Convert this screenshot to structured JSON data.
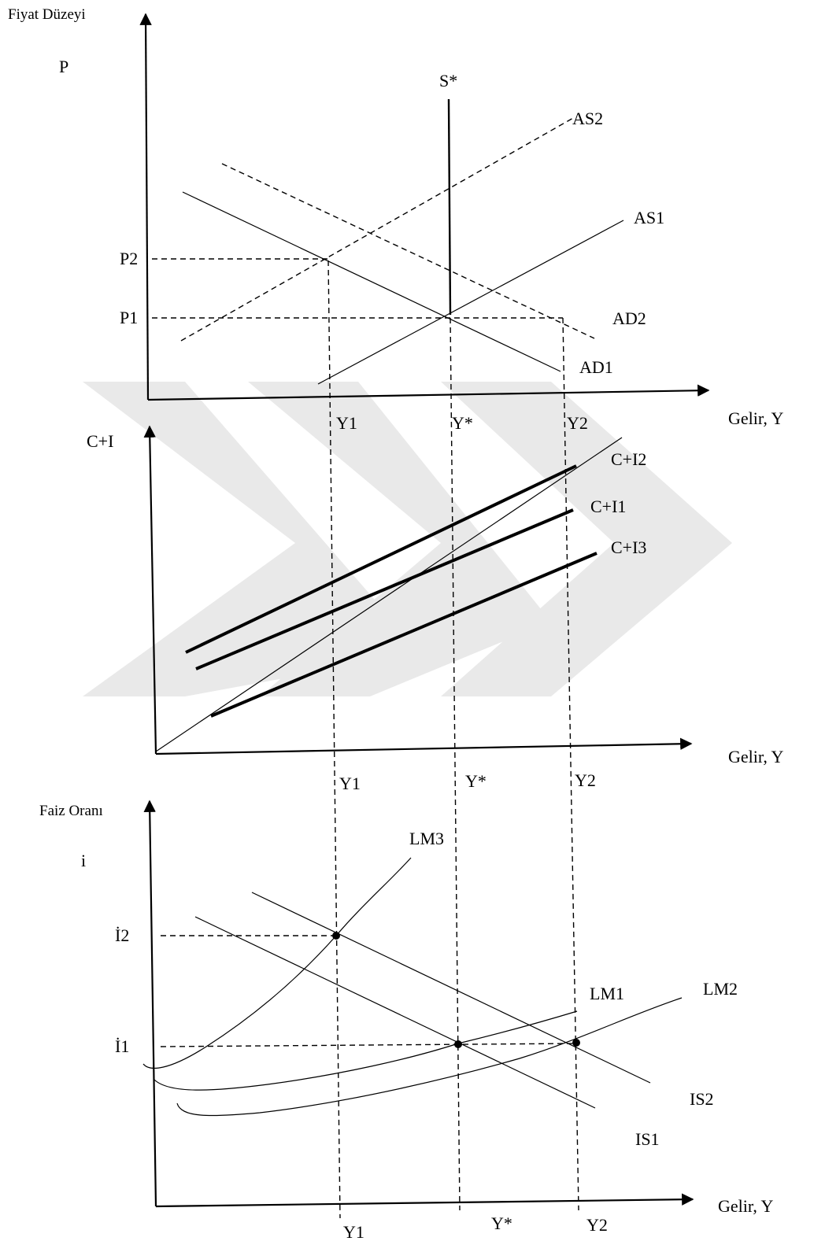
{
  "panel_top": {
    "y_axis_title": "Fiyat Düzeyi",
    "y_symbol": "P",
    "x_axis_label": "Gelir, Y",
    "curves": {
      "s_star": "S*",
      "as2": "AS2",
      "as1": "AS1",
      "ad2": "AD2",
      "ad1": "AD1"
    },
    "price_levels": {
      "p2": "P2",
      "p1": "P1"
    },
    "incomes": {
      "y1": "Y1",
      "y_star": "Y*",
      "y2": "Y2"
    }
  },
  "panel_middle": {
    "y_axis_title": "C+I",
    "x_axis_label": "Gelir, Y",
    "curves": {
      "ci2": "C+I2",
      "ci1": "C+I1",
      "ci3": "C+I3"
    },
    "incomes": {
      "y1": "Y1",
      "y_star": "Y*",
      "y2": "Y2"
    }
  },
  "panel_bottom": {
    "y_axis_title": "Faiz Oranı",
    "y_symbol": "i",
    "x_axis_label": "Gelir, Y",
    "curves": {
      "lm3": "LM3",
      "lm1": "LM1",
      "lm2": "LM2",
      "is2": "IS2",
      "is1": "IS1"
    },
    "rates": {
      "i2": "İ2",
      "i1": "İ1"
    },
    "incomes": {
      "y1": "Y1",
      "y_star": "Y*",
      "y2": "Y2"
    }
  }
}
